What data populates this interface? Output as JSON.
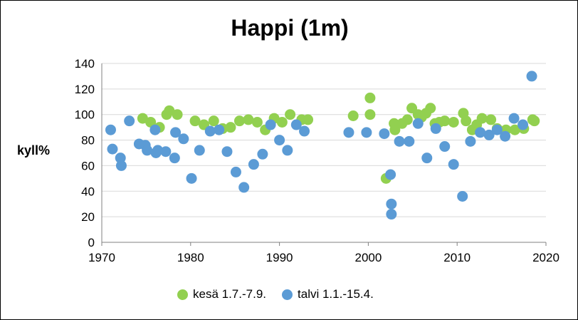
{
  "chart_data": {
    "type": "scatter",
    "title": "Happi (1m)",
    "xlabel": "",
    "ylabel": "kyll%",
    "xlim": [
      1970,
      2020
    ],
    "ylim": [
      0,
      140
    ],
    "x_ticks": [
      "1970",
      "1980",
      "1990",
      "2000",
      "2010",
      "2020"
    ],
    "y_ticks": [
      "0",
      "20",
      "40",
      "60",
      "80",
      "100",
      "120",
      "140"
    ],
    "grid": "horizontal",
    "legend_position": "bottom",
    "series": [
      {
        "name": "kesä 1.7.-7.9.",
        "color": "#92d050",
        "points": [
          [
            1974.6,
            97
          ],
          [
            1975.5,
            94
          ],
          [
            1976.5,
            90
          ],
          [
            1977.3,
            100
          ],
          [
            1977.6,
            103
          ],
          [
            1978.5,
            100
          ],
          [
            1980.5,
            95
          ],
          [
            1981.5,
            92
          ],
          [
            1982.6,
            95
          ],
          [
            1983.6,
            89
          ],
          [
            1984.5,
            90
          ],
          [
            1985.5,
            95
          ],
          [
            1986.5,
            96
          ],
          [
            1987.5,
            94
          ],
          [
            1988.4,
            88
          ],
          [
            1989.4,
            97
          ],
          [
            1990.3,
            94
          ],
          [
            1991.2,
            100
          ],
          [
            1992.5,
            96
          ],
          [
            1993.2,
            96
          ],
          [
            1998.3,
            99
          ],
          [
            2000.2,
            100
          ],
          [
            2000.2,
            113
          ],
          [
            2002.0,
            50
          ],
          [
            2002.9,
            93
          ],
          [
            2003.0,
            88
          ],
          [
            2003.8,
            93
          ],
          [
            2004.4,
            96
          ],
          [
            2004.9,
            105
          ],
          [
            2005.6,
            100
          ],
          [
            2006.0,
            98
          ],
          [
            2006.5,
            101
          ],
          [
            2007.0,
            105
          ],
          [
            2007.5,
            93
          ],
          [
            2008.0,
            94
          ],
          [
            2008.6,
            95
          ],
          [
            2009.6,
            94
          ],
          [
            2010.7,
            101
          ],
          [
            2011.0,
            95
          ],
          [
            2011.7,
            88
          ],
          [
            2012.2,
            92
          ],
          [
            2012.8,
            97
          ],
          [
            2013.8,
            96
          ],
          [
            2014.5,
            89
          ],
          [
            2015.5,
            88
          ],
          [
            2016.5,
            88
          ],
          [
            2017.5,
            89
          ],
          [
            2018.5,
            96
          ],
          [
            2018.7,
            95
          ]
        ]
      },
      {
        "name": "talvi 1.1.-15.4.",
        "color": "#5b9bd5",
        "points": [
          [
            1971.0,
            88
          ],
          [
            1971.2,
            73
          ],
          [
            1972.1,
            66
          ],
          [
            1972.2,
            60
          ],
          [
            1973.1,
            95
          ],
          [
            1974.2,
            77
          ],
          [
            1974.9,
            76
          ],
          [
            1975.1,
            72
          ],
          [
            1976.0,
            88
          ],
          [
            1976.1,
            70
          ],
          [
            1976.3,
            72
          ],
          [
            1977.2,
            71
          ],
          [
            1978.2,
            66
          ],
          [
            1978.3,
            86
          ],
          [
            1979.2,
            81
          ],
          [
            1980.1,
            50
          ],
          [
            1981.0,
            72
          ],
          [
            1982.2,
            87
          ],
          [
            1983.2,
            88
          ],
          [
            1984.1,
            71
          ],
          [
            1985.1,
            55
          ],
          [
            1986.0,
            43
          ],
          [
            1987.1,
            61
          ],
          [
            1988.1,
            69
          ],
          [
            1989.0,
            92
          ],
          [
            1990.0,
            80
          ],
          [
            1990.9,
            72
          ],
          [
            1991.9,
            92
          ],
          [
            1992.8,
            87
          ],
          [
            1997.8,
            86
          ],
          [
            1999.8,
            86
          ],
          [
            2001.8,
            85
          ],
          [
            2002.5,
            53
          ],
          [
            2002.6,
            30
          ],
          [
            2002.6,
            22
          ],
          [
            2003.5,
            79
          ],
          [
            2004.6,
            79
          ],
          [
            2005.6,
            93
          ],
          [
            2006.6,
            66
          ],
          [
            2007.6,
            89
          ],
          [
            2008.6,
            75
          ],
          [
            2009.6,
            61
          ],
          [
            2010.6,
            36
          ],
          [
            2011.5,
            79
          ],
          [
            2012.6,
            86
          ],
          [
            2013.6,
            84
          ],
          [
            2014.5,
            88
          ],
          [
            2015.4,
            83
          ],
          [
            2016.4,
            97
          ],
          [
            2017.4,
            92
          ],
          [
            2018.4,
            130
          ]
        ]
      }
    ]
  }
}
